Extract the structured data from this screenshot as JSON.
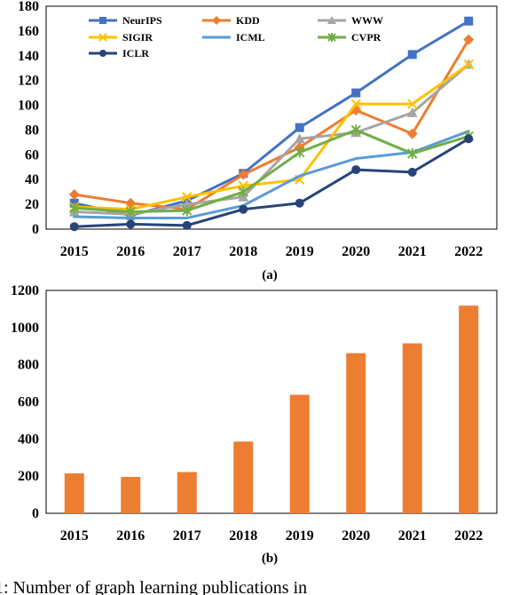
{
  "chart_data": [
    {
      "type": "line",
      "panel_label": "(a)",
      "categories": [
        "2015",
        "2016",
        "2017",
        "2018",
        "2019",
        "2020",
        "2021",
        "2022"
      ],
      "ylim": [
        0,
        180
      ],
      "yticks": [
        "0",
        "20",
        "40",
        "60",
        "80",
        "100",
        "120",
        "140",
        "160",
        "180"
      ],
      "legend_position": "top-left",
      "grid": false,
      "series": [
        {
          "name": "NeurIPS",
          "color": "#4472C4",
          "marker": "square",
          "values": [
            21,
            11,
            23,
            45,
            82,
            110,
            141,
            168
          ]
        },
        {
          "name": "KDD",
          "color": "#ED7D31",
          "marker": "diamond",
          "values": [
            28,
            21,
            16,
            44,
            66,
            96,
            77,
            153
          ]
        },
        {
          "name": "WWW",
          "color": "#A5A5A5",
          "marker": "triangle",
          "values": [
            14,
            12,
            20,
            26,
            73,
            78,
            94,
            133
          ]
        },
        {
          "name": "SIGIR",
          "color": "#FFC000",
          "marker": "x",
          "values": [
            18,
            16,
            26,
            35,
            40,
            101,
            101,
            133
          ]
        },
        {
          "name": "ICML",
          "color": "#5B9BD5",
          "marker": "none",
          "values": [
            10,
            9,
            9,
            19,
            43,
            57,
            62,
            79
          ]
        },
        {
          "name": "CVPR",
          "color": "#70AD47",
          "marker": "asterisk",
          "values": [
            17,
            14,
            15,
            30,
            62,
            80,
            61,
            75
          ]
        },
        {
          "name": "ICLR",
          "color": "#264478",
          "marker": "circle",
          "values": [
            2,
            4,
            3,
            16,
            21,
            48,
            46,
            73
          ]
        }
      ]
    },
    {
      "type": "bar",
      "panel_label": "(b)",
      "categories": [
        "2015",
        "2016",
        "2017",
        "2018",
        "2019",
        "2020",
        "2021",
        "2022"
      ],
      "values": [
        215,
        196,
        222,
        386,
        638,
        862,
        915,
        1118
      ],
      "color": "#ED7D31",
      "ylim": [
        0,
        1200
      ],
      "yticks": [
        "0",
        "200",
        "400",
        "600",
        "800",
        "1000",
        "1200"
      ],
      "grid": false
    }
  ],
  "caption": "1: Number of graph learning publications in"
}
